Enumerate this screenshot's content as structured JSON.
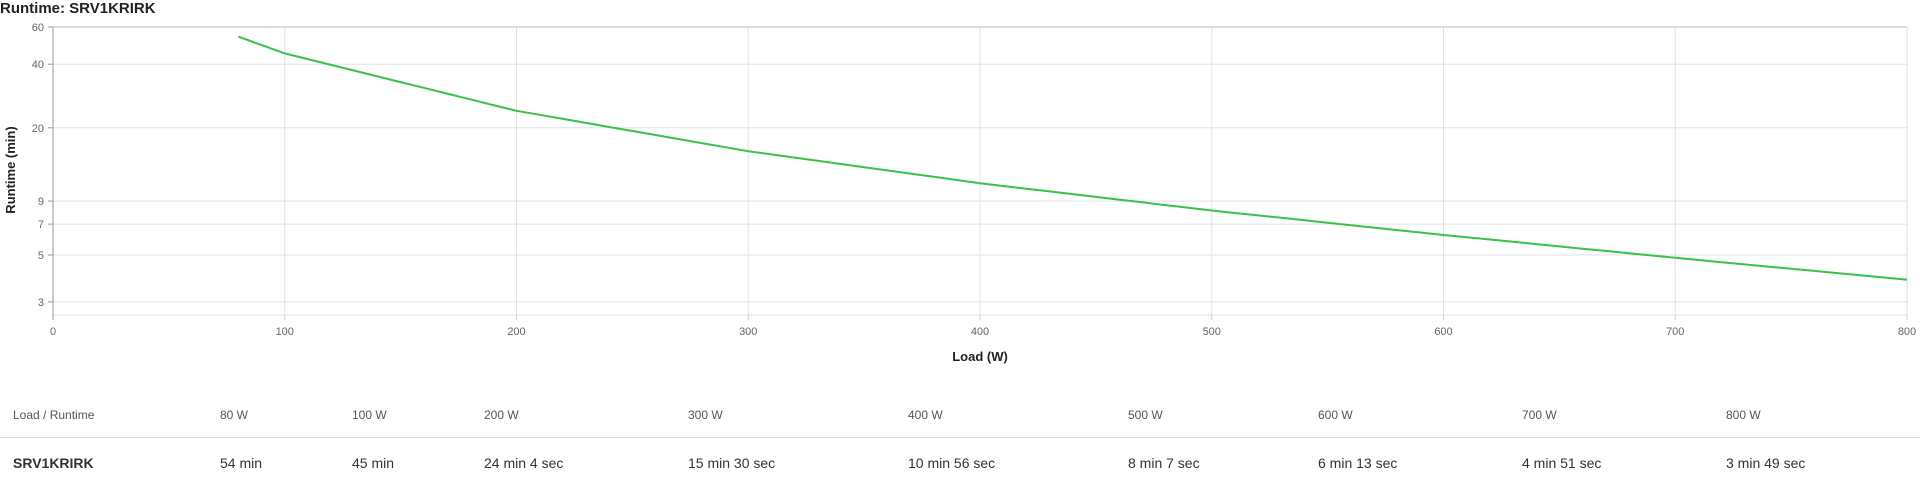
{
  "title": "Runtime: SRV1KRIRK",
  "chart_data": {
    "type": "line",
    "title": "Runtime: SRV1KRIRK",
    "xlabel": "Load (W)",
    "ylabel": "Runtime (min)",
    "xlim": [
      0,
      800
    ],
    "ylim": [
      2.6,
      60
    ],
    "yscale": "log",
    "x_ticks": [
      0,
      100,
      200,
      300,
      400,
      500,
      600,
      700,
      800
    ],
    "y_ticks": [
      3,
      5,
      7,
      9,
      20,
      40,
      60
    ],
    "grid": true,
    "line_color": "#3cc04a",
    "series": [
      {
        "name": "SRV1KRIRK",
        "x": [
          80,
          100,
          200,
          300,
          400,
          500,
          600,
          700,
          800
        ],
        "values": [
          54,
          45,
          24.07,
          15.5,
          10.93,
          8.12,
          6.22,
          4.85,
          3.82
        ]
      }
    ]
  },
  "table": {
    "header_label": "Load / Runtime",
    "columns": [
      "80 W",
      "100 W",
      "200 W",
      "300 W",
      "400 W",
      "500 W",
      "600 W",
      "700 W",
      "800 W"
    ],
    "rows": [
      {
        "model": "SRV1KRIRK",
        "values": [
          "54 min",
          "45 min",
          "24 min 4 sec",
          "15 min 30 sec",
          "10 min 56 sec",
          "8 min 7 sec",
          "6 min 13 sec",
          "4 min 51 sec",
          "3 min 49 sec"
        ]
      }
    ]
  }
}
